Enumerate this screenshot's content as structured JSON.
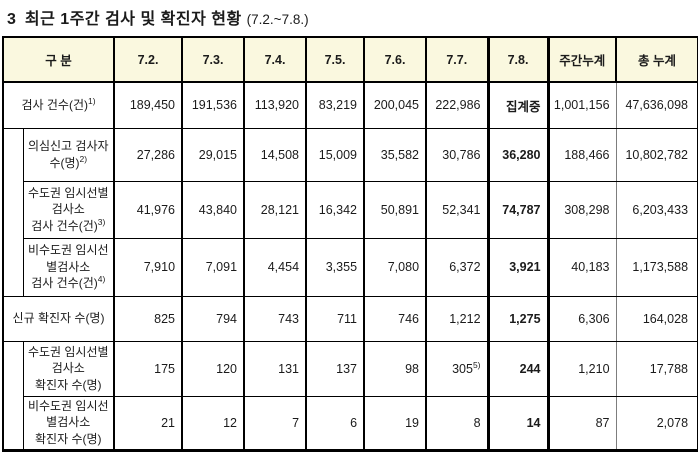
{
  "title": {
    "number": "3",
    "text": "최근 1주간 검사 및 확진자 현황",
    "range": "(7.2.~7.8.)"
  },
  "table": {
    "header": [
      "구 분",
      "7.2.",
      "7.3.",
      "7.4.",
      "7.5.",
      "7.6.",
      "7.7.",
      "7.8.",
      "주간누계",
      "총 누계"
    ],
    "highlight_column": "7.8.",
    "header_bg": "#faf8df",
    "rows": [
      {
        "indent": false,
        "label_lines": [
          "검사 건수(건)"
        ],
        "label_sup": "1)",
        "values": [
          "189,450",
          "191,536",
          "113,920",
          "83,219",
          "200,045",
          "222,986",
          "집계중",
          "1,001,156",
          "47,636,098"
        ]
      },
      {
        "indent": true,
        "label_lines": [
          "의심신고 검사자",
          "수(명)"
        ],
        "label_sup": "2)",
        "values": [
          "27,286",
          "29,015",
          "14,508",
          "15,009",
          "35,582",
          "30,786",
          "36,280",
          "188,466",
          "10,802,782"
        ]
      },
      {
        "indent": true,
        "label_lines": [
          "수도권 임시선별",
          "검사소",
          "검사 건수(건)"
        ],
        "label_sup": "3)",
        "values": [
          "41,976",
          "43,840",
          "28,121",
          "16,342",
          "50,891",
          "52,341",
          "74,787",
          "308,298",
          "6,203,433"
        ]
      },
      {
        "indent": true,
        "label_lines": [
          "비수도권 임시선",
          "별검사소",
          "검사 건수(건)"
        ],
        "label_sup": "4)",
        "values": [
          "7,910",
          "7,091",
          "4,454",
          "3,355",
          "7,080",
          "6,372",
          "3,921",
          "40,183",
          "1,173,588"
        ]
      },
      {
        "indent": false,
        "label_lines": [
          "신규 확진자 수(명)"
        ],
        "label_sup": "",
        "values": [
          "825",
          "794",
          "743",
          "711",
          "746",
          "1,212",
          "1,275",
          "6,306",
          "164,028"
        ]
      },
      {
        "indent": true,
        "label_lines": [
          "수도권 임시선별",
          "검사소",
          "확진자 수(명)"
        ],
        "label_sup": "",
        "values": [
          "175",
          "120",
          "131",
          "137",
          "98",
          {
            "v": "305",
            "sup": "5)"
          },
          "244",
          "1,210",
          "17,788"
        ]
      },
      {
        "indent": true,
        "label_lines": [
          "비수도권 임시선",
          "별검사소",
          "확진자 수(명)"
        ],
        "label_sup": "",
        "values": [
          "21",
          "12",
          "7",
          "6",
          "19",
          "8",
          "14",
          "87",
          "2,078"
        ]
      }
    ]
  }
}
